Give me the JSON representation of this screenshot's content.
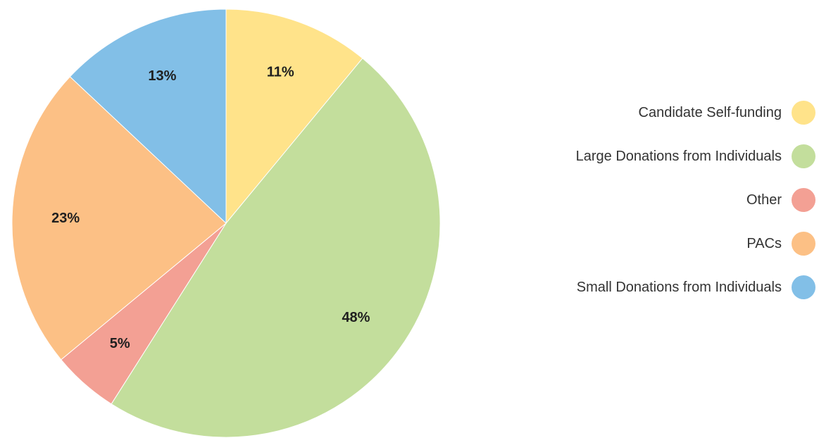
{
  "chart_data": {
    "type": "pie",
    "title": "",
    "legend_position": "right",
    "slices": [
      {
        "name": "Candidate Self-funding",
        "value": 11,
        "label": "11%",
        "color": "#ffe38a"
      },
      {
        "name": "Large Donations from Individuals",
        "value": 48,
        "label": "48%",
        "color": "#c3de9c"
      },
      {
        "name": "Other",
        "value": 5,
        "label": "5%",
        "color": "#f3a094"
      },
      {
        "name": "PACs",
        "value": 23,
        "label": "23%",
        "color": "#fcc085"
      },
      {
        "name": "Small Donations from Individuals",
        "value": 13,
        "label": "13%",
        "color": "#82bfe7"
      }
    ]
  }
}
